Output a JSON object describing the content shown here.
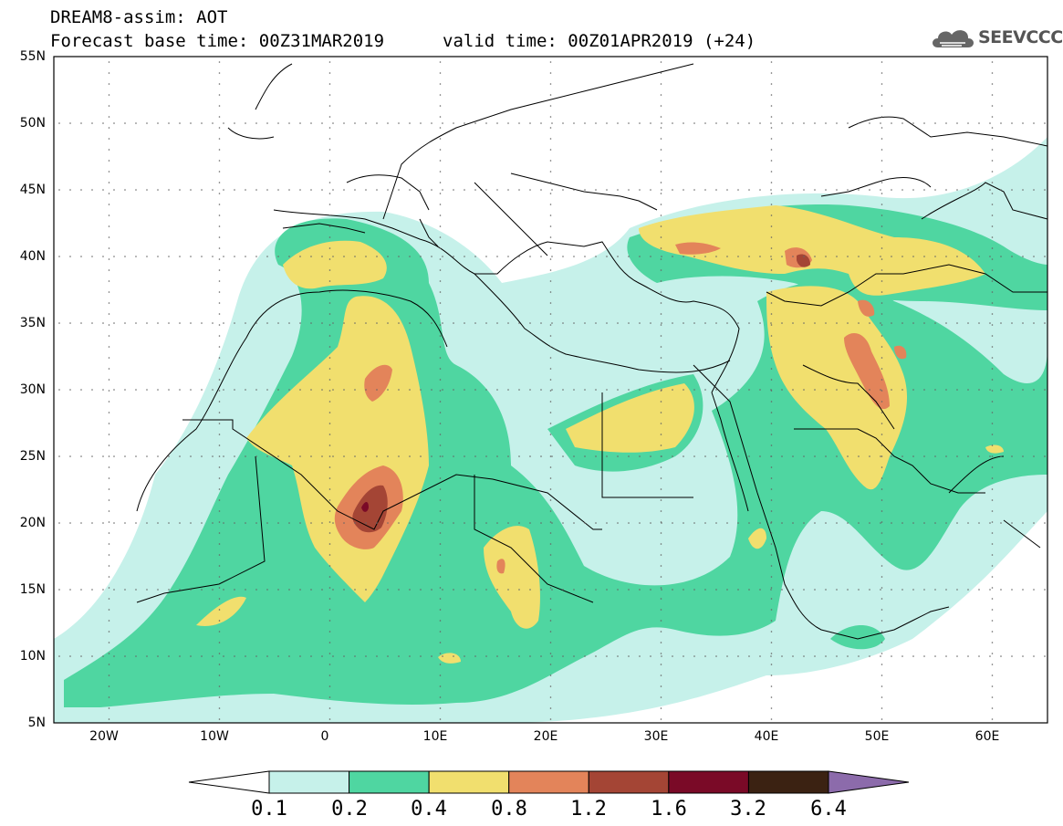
{
  "header": {
    "title_line1": "DREAM8-assim: AOT",
    "base_time": "Forecast base time: 00Z31MAR2019",
    "valid_time": "valid time: 00Z01APR2019 (+24)"
  },
  "logo": {
    "text": "SEEVCCC",
    "icon": "cloud-icon"
  },
  "map": {
    "lat_labels": [
      "55N",
      "50N",
      "45N",
      "40N",
      "35N",
      "30N",
      "25N",
      "20N",
      "15N",
      "10N",
      "5N"
    ],
    "lon_labels": [
      "20W",
      "10W",
      "0",
      "10E",
      "20E",
      "30E",
      "40E",
      "50E",
      "60E"
    ],
    "lat_range": [
      5,
      55
    ],
    "lon_range": [
      -25,
      65
    ]
  },
  "legend": {
    "labels": [
      "0.1",
      "0.2",
      "0.4",
      "0.8",
      "1.2",
      "1.6",
      "3.2",
      "6.4"
    ],
    "colors": [
      "#c6f1ea",
      "#4fd6a1",
      "#f1df6e",
      "#e3845a",
      "#a44535",
      "#7a0a27",
      "#3b2212",
      "#8c6bab"
    ]
  }
}
